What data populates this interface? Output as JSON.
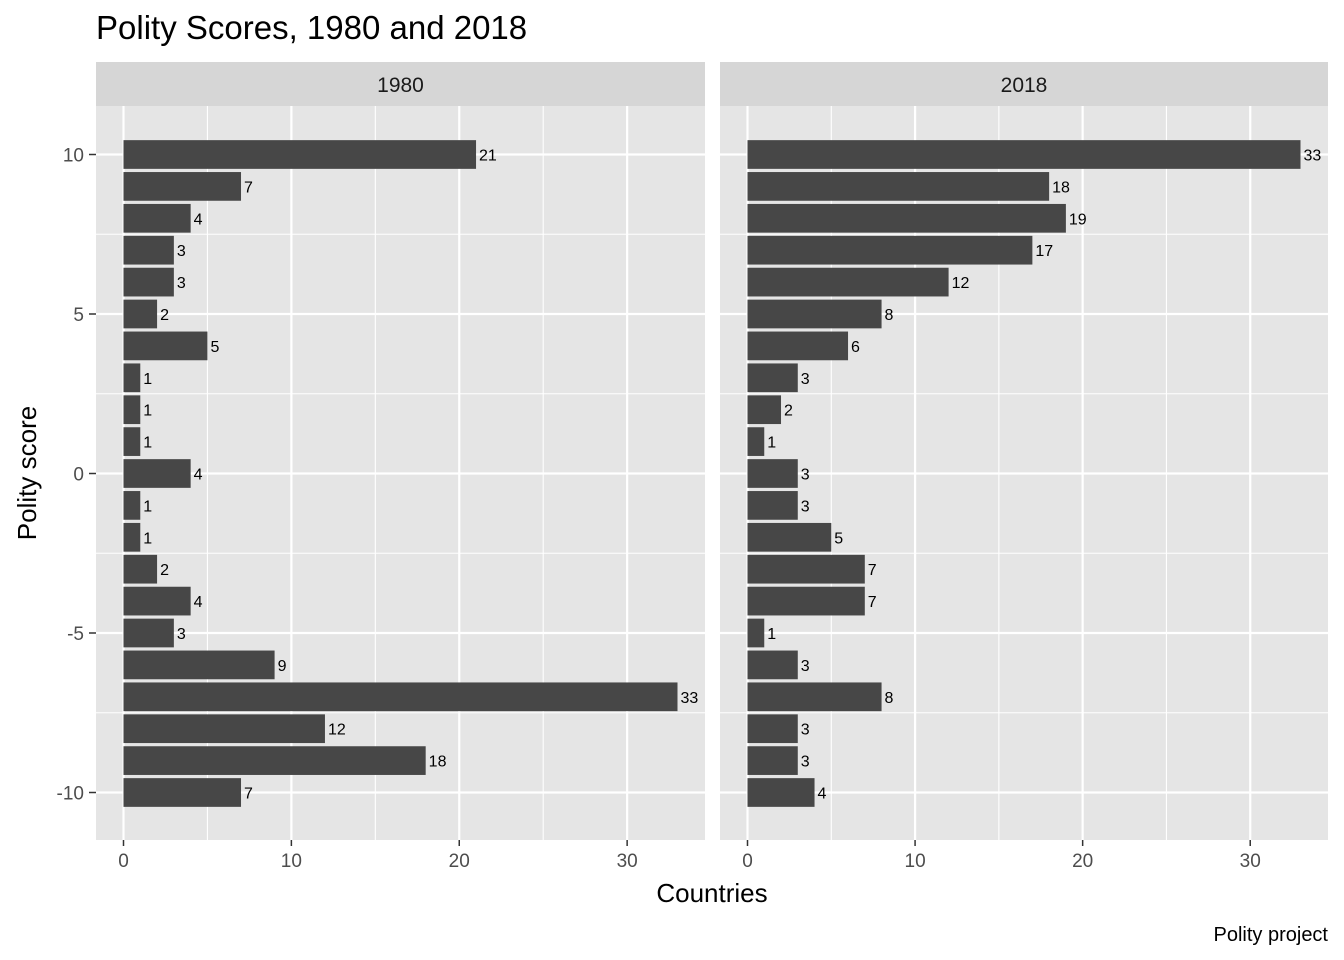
{
  "chart_data": {
    "type": "bar",
    "orientation": "horizontal",
    "title": "Polity Scores, 1980 and 2018",
    "xlabel": "Countries",
    "ylabel": "Polity score",
    "caption": "Polity project",
    "xlim": [
      0,
      33
    ],
    "ylim": [
      -10,
      10
    ],
    "x_ticks": [
      "0",
      "10",
      "20",
      "30"
    ],
    "y_ticks": [
      "10",
      "5",
      "0",
      "-5",
      "-10"
    ],
    "categories": [
      10,
      9,
      8,
      7,
      6,
      5,
      4,
      3,
      2,
      1,
      0,
      -1,
      -2,
      -3,
      -4,
      -5,
      -6,
      -7,
      -8,
      -9,
      -10
    ],
    "grid": true,
    "facets": [
      {
        "name": "1980",
        "values": [
          21,
          7,
          4,
          3,
          3,
          2,
          5,
          1,
          1,
          1,
          4,
          1,
          1,
          2,
          4,
          3,
          9,
          33,
          12,
          18,
          7
        ]
      },
      {
        "name": "2018",
        "values": [
          33,
          18,
          19,
          17,
          12,
          8,
          6,
          3,
          2,
          1,
          3,
          3,
          5,
          7,
          7,
          1,
          3,
          8,
          3,
          3,
          4
        ]
      }
    ],
    "colors": {
      "bar": "#474747",
      "panel": "#e5e5e5",
      "strip": "#d6d6d6",
      "grid": "#ffffff"
    }
  }
}
